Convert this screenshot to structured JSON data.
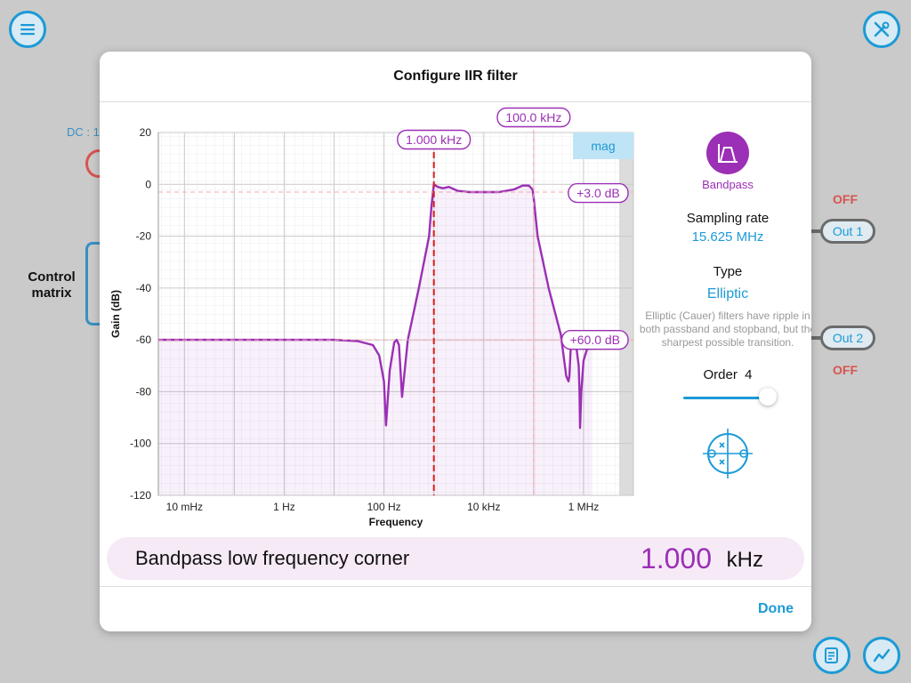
{
  "background": {
    "dc_label": "DC : 1",
    "control_matrix": "Control matrix",
    "out1": {
      "label": "Out 1",
      "status": "OFF"
    },
    "out2": {
      "label": "Out 2",
      "status": "OFF"
    }
  },
  "icons": {
    "menu": "menu-icon",
    "tools": "tools-icon",
    "notes": "notes-icon",
    "scope": "scope-icon"
  },
  "colors": {
    "accent": "#1c9ad6",
    "curve": "#9b2fb5",
    "marker": "#dd1d1d",
    "off": "#d9534f"
  },
  "dialog": {
    "title": "Configure IIR filter",
    "done_label": "Done"
  },
  "chart_data": {
    "type": "line",
    "xlabel": "Frequency",
    "ylabel": "Gain (dB)",
    "x_scale": "log",
    "xlim_hz": [
      0.003,
      10000000
    ],
    "ylim": [
      -120,
      20
    ],
    "y_ticks": [
      20,
      0,
      -20,
      -40,
      -60,
      -80,
      -100,
      -120
    ],
    "x_ticks": [
      {
        "hz": 0.01,
        "label": "10 mHz"
      },
      {
        "hz": 1,
        "label": "1 Hz"
      },
      {
        "hz": 100,
        "label": "100 Hz"
      },
      {
        "hz": 10000,
        "label": "10 kHz"
      },
      {
        "hz": 1000000,
        "label": "1 MHz"
      }
    ],
    "mode_label": "mag",
    "grid": true,
    "markers": {
      "low_corner": {
        "hz": 1000,
        "label": "1.000 kHz"
      },
      "high_corner": {
        "hz": 100000,
        "label": "100.0 kHz"
      },
      "passband_ripple": {
        "db": -3,
        "label": "+3.0 dB"
      },
      "stopband_atten": {
        "db": -60,
        "label": "+60.0 dB"
      }
    },
    "series": [
      {
        "x": [
          0.003,
          1,
          10,
          30,
          60,
          80,
          100,
          110,
          130,
          160,
          180,
          200,
          230,
          300,
          500,
          800,
          900,
          1000,
          1200,
          1500,
          2000,
          3000,
          5000,
          10000,
          20000,
          40000,
          60000,
          80000,
          95000,
          100000,
          120000,
          200000,
          350000,
          450000,
          500000,
          520000,
          550000,
          600000,
          700000,
          800000,
          830000,
          850000,
          900000,
          1000000,
          1200000,
          1500000
        ],
        "y": [
          -60,
          -60,
          -60,
          -60.5,
          -62,
          -66,
          -76,
          -93,
          -72,
          -61,
          -60,
          -62,
          -82,
          -60,
          -40,
          -20,
          -8,
          0,
          -1,
          -1.5,
          -1,
          -2.5,
          -3,
          -3,
          -3,
          -2,
          -0.5,
          -0.5,
          -2,
          -5,
          -20,
          -40,
          -58,
          -74,
          -76,
          -74,
          -64,
          -60,
          -61,
          -70,
          -80,
          -94,
          -80,
          -68,
          -63,
          -60
        ]
      }
    ]
  },
  "sidebar": {
    "filter_type_label": "Bandpass",
    "sampling_label": "Sampling rate",
    "sampling_value": "15.625 MHz",
    "type_label": "Type",
    "type_value": "Elliptic",
    "type_note": "Elliptic (Cauer) filters have ripple in both passband and stopband, but the sharpest possible transition.",
    "order_label": "Order",
    "order_value": "4",
    "order_slider_fraction": 0.95
  },
  "value_bar": {
    "label": "Bandpass low frequency corner",
    "value": "1.000",
    "unit": "kHz"
  }
}
